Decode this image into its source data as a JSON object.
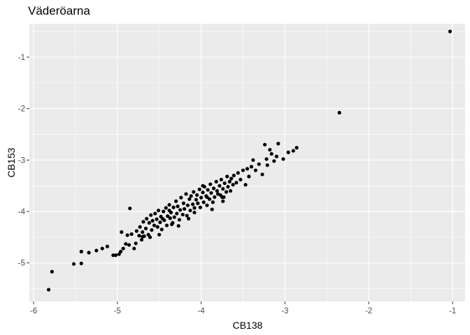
{
  "chart_data": {
    "type": "scatter",
    "title": "Väderöarna",
    "xlabel": "CB138",
    "ylabel": "CB153",
    "xlim": [
      -6.05,
      -0.85
    ],
    "ylim": [
      -5.75,
      -0.35
    ],
    "x_ticks": [
      -6,
      -5,
      -4,
      -3,
      -2,
      -1
    ],
    "y_ticks": [
      -5,
      -4,
      -3,
      -2,
      -1
    ],
    "x_tick_labels": [
      "-6",
      "-5",
      "-4",
      "-3",
      "-2",
      "-1"
    ],
    "y_tick_labels": [
      "-5",
      "-4",
      "-3",
      "-2",
      "-1"
    ],
    "grid": true,
    "legend": "none",
    "colors": {
      "panel": "#ebebeb",
      "grid": "#ffffff",
      "point": "#000000"
    },
    "points": [
      [
        -5.82,
        -5.52
      ],
      [
        -5.78,
        -5.17
      ],
      [
        -5.52,
        -5.02
      ],
      [
        -5.43,
        -5.01
      ],
      [
        -5.43,
        -4.78
      ],
      [
        -5.34,
        -4.8
      ],
      [
        -5.25,
        -4.76
      ],
      [
        -5.18,
        -4.72
      ],
      [
        -5.12,
        -4.68
      ],
      [
        -5.05,
        -4.85
      ],
      [
        -5.02,
        -4.85
      ],
      [
        -4.98,
        -4.83
      ],
      [
        -4.96,
        -4.78
      ],
      [
        -4.95,
        -4.4
      ],
      [
        -4.93,
        -4.72
      ],
      [
        -4.9,
        -4.63
      ],
      [
        -4.88,
        -4.46
      ],
      [
        -4.86,
        -4.65
      ],
      [
        -4.83,
        -4.44
      ],
      [
        -4.8,
        -4.72
      ],
      [
        -4.78,
        -4.62
      ],
      [
        -4.77,
        -4.38
      ],
      [
        -4.74,
        -4.47
      ],
      [
        -4.73,
        -4.3
      ],
      [
        -4.71,
        -4.55
      ],
      [
        -4.7,
        -4.4
      ],
      [
        -4.69,
        -4.2
      ],
      [
        -4.68,
        -4.48
      ],
      [
        -4.66,
        -4.33
      ],
      [
        -4.65,
        -4.14
      ],
      [
        -4.63,
        -4.45
      ],
      [
        -4.62,
        -4.22
      ],
      [
        -4.6,
        -4.07
      ],
      [
        -4.59,
        -4.36
      ],
      [
        -4.58,
        -4.18
      ],
      [
        -4.56,
        -4.27
      ],
      [
        -4.55,
        -4.04
      ],
      [
        -4.53,
        -4.15
      ],
      [
        -4.52,
        -4.3
      ],
      [
        -4.51,
        -3.98
      ],
      [
        -4.49,
        -4.21
      ],
      [
        -4.48,
        -4.1
      ],
      [
        -4.47,
        -4.35
      ],
      [
        -4.45,
        -4.0
      ],
      [
        -4.44,
        -4.17
      ],
      [
        -4.42,
        -3.93
      ],
      [
        -4.41,
        -4.27
      ],
      [
        -4.4,
        -4.09
      ],
      [
        -4.38,
        -3.87
      ],
      [
        -4.37,
        -4.13
      ],
      [
        -4.36,
        -4.02
      ],
      [
        -4.34,
        -4.22
      ],
      [
        -4.33,
        -3.92
      ],
      [
        -4.32,
        -4.11
      ],
      [
        -4.3,
        -3.8
      ],
      [
        -4.29,
        -4.04
      ],
      [
        -4.28,
        -3.9
      ],
      [
        -4.26,
        -4.16
      ],
      [
        -4.25,
        -3.97
      ],
      [
        -4.24,
        -3.73
      ],
      [
        -4.22,
        -4.06
      ],
      [
        -4.21,
        -3.84
      ],
      [
        -4.2,
        -3.95
      ],
      [
        -4.18,
        -3.66
      ],
      [
        -4.17,
        -4.08
      ],
      [
        -4.16,
        -3.88
      ],
      [
        -4.14,
        -3.76
      ],
      [
        -4.13,
        -3.98
      ],
      [
        -4.12,
        -3.7
      ],
      [
        -4.1,
        -3.86
      ],
      [
        -4.09,
        -3.62
      ],
      [
        -4.08,
        -3.93
      ],
      [
        -4.06,
        -3.77
      ],
      [
        -4.05,
        -3.68
      ],
      [
        -4.04,
        -3.84
      ],
      [
        -4.02,
        -3.57
      ],
      [
        -4.01,
        -3.92
      ],
      [
        -4.0,
        -3.73
      ],
      [
        -3.98,
        -3.63
      ],
      [
        -3.97,
        -3.82
      ],
      [
        -3.96,
        -3.52
      ],
      [
        -3.94,
        -3.7
      ],
      [
        -3.93,
        -3.88
      ],
      [
        -3.92,
        -3.58
      ],
      [
        -3.9,
        -3.76
      ],
      [
        -3.89,
        -3.47
      ],
      [
        -3.88,
        -3.64
      ],
      [
        -3.86,
        -3.82
      ],
      [
        -3.85,
        -3.55
      ],
      [
        -3.84,
        -3.72
      ],
      [
        -3.82,
        -3.42
      ],
      [
        -3.81,
        -3.6
      ],
      [
        -3.8,
        -3.66
      ],
      [
        -3.78,
        -3.5
      ],
      [
        -3.77,
        -3.68
      ],
      [
        -3.76,
        -3.38
      ],
      [
        -3.74,
        -3.56
      ],
      [
        -3.73,
        -3.72
      ],
      [
        -3.72,
        -3.45
      ],
      [
        -3.7,
        -3.62
      ],
      [
        -3.69,
        -3.32
      ],
      [
        -3.68,
        -3.52
      ],
      [
        -3.66,
        -3.42
      ],
      [
        -3.65,
        -3.6
      ],
      [
        -3.64,
        -3.36
      ],
      [
        -3.62,
        -3.48
      ],
      [
        -3.61,
        -3.3
      ],
      [
        -3.58,
        -3.44
      ],
      [
        -3.56,
        -3.25
      ],
      [
        -3.53,
        -3.38
      ],
      [
        -3.5,
        -3.2
      ],
      [
        -3.47,
        -3.48
      ],
      [
        -3.45,
        -3.17
      ],
      [
        -3.43,
        -3.32
      ],
      [
        -3.4,
        -3.13
      ],
      [
        -3.38,
        -3.0
      ],
      [
        -3.35,
        -3.2
      ],
      [
        -3.31,
        -3.08
      ],
      [
        -3.27,
        -3.28
      ],
      [
        -3.24,
        -2.7
      ],
      [
        -3.22,
        -2.98
      ],
      [
        -3.21,
        -3.1
      ],
      [
        -3.18,
        -2.8
      ],
      [
        -3.16,
        -2.88
      ],
      [
        -3.13,
        -3.02
      ],
      [
        -3.1,
        -2.93
      ],
      [
        -3.08,
        -2.68
      ],
      [
        -3.02,
        -2.98
      ],
      [
        -2.96,
        -2.85
      ],
      [
        -2.9,
        -2.82
      ],
      [
        -2.86,
        -2.76
      ],
      [
        -4.85,
        -3.94
      ],
      [
        -4.27,
        -4.28
      ],
      [
        -3.74,
        -3.8
      ],
      [
        -4.15,
        -4.14
      ],
      [
        -4.5,
        -4.45
      ],
      [
        -4.38,
        -3.98
      ],
      [
        -3.98,
        -3.5
      ],
      [
        -3.87,
        -3.96
      ],
      [
        -4.61,
        -4.5
      ],
      [
        -4.08,
        -4.02
      ],
      [
        -3.75,
        -3.72
      ],
      [
        -4.7,
        -4.49
      ],
      [
        -4.46,
        -4.14
      ],
      [
        -3.93,
        -3.72
      ],
      [
        -4.35,
        -4.25
      ],
      [
        -2.35,
        -2.08
      ],
      [
        -1.03,
        -0.5
      ]
    ]
  }
}
